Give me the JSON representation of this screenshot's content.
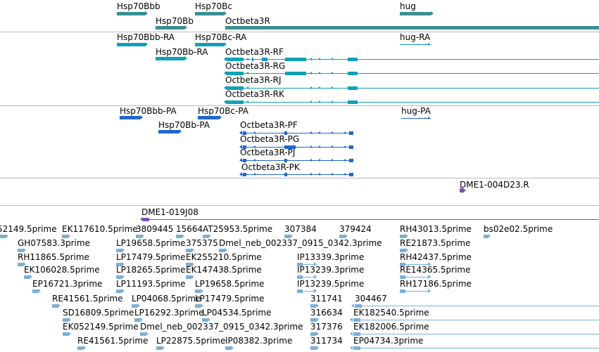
{
  "colors": {
    "gene": "#3a9090",
    "mrna": "#10a0b8",
    "protein": "#2266cc",
    "sts": "#7a55b0",
    "est": "#7ab0d8",
    "divider": "#b8b8c8"
  },
  "tracks": {
    "genes": [
      {
        "label": "Hsp70Bbb",
        "strand": "+"
      },
      {
        "label": "Hsp70Bc",
        "strand": "+"
      },
      {
        "label": "hug",
        "strand": "+"
      },
      {
        "label": "Hsp70Bb",
        "strand": "+"
      },
      {
        "label": "Octbeta3R",
        "strand": "+"
      }
    ],
    "transcripts": [
      {
        "label": "Hsp70Bbb-RA",
        "strand": "+"
      },
      {
        "label": "Hsp70Bc-RA",
        "strand": "+"
      },
      {
        "label": "hug-RA",
        "strand": "+"
      },
      {
        "label": "Hsp70Bb-RA",
        "strand": "+"
      },
      {
        "label": "Octbeta3R-RF",
        "strand": "-"
      },
      {
        "label": "Octbeta3R-RG",
        "strand": "-"
      },
      {
        "label": "Octbeta3R-RJ",
        "strand": "-"
      },
      {
        "label": "Octbeta3R-RK",
        "strand": "-"
      }
    ],
    "proteins": [
      {
        "label": "Hsp70Bbb-PA",
        "strand": "+"
      },
      {
        "label": "Hsp70Bc-PA",
        "strand": "+"
      },
      {
        "label": "hug-PA",
        "strand": "+"
      },
      {
        "label": "Hsp70Bb-PA",
        "strand": "+"
      },
      {
        "label": "Octbeta3R-PF",
        "strand": "-"
      },
      {
        "label": "Octbeta3R-PG",
        "strand": "-"
      },
      {
        "label": "Octbeta3R-PJ",
        "strand": "-"
      },
      {
        "label": "Octbeta3R-PK",
        "strand": "-"
      }
    ],
    "sts": [
      {
        "label": "DME1-004D23.R",
        "strand": "+"
      },
      {
        "label": "DME1-019J08",
        "strand": "-"
      }
    ],
    "ests": [
      {
        "label": "52149.5prime"
      },
      {
        "label": "EK117610.5prime"
      },
      {
        "label": "3809445"
      },
      {
        "label": "15664"
      },
      {
        "label": "AT25953.5prime"
      },
      {
        "label": "307384"
      },
      {
        "label": "379424"
      },
      {
        "label": "RH43013.5prime"
      },
      {
        "label": "bs02e02.5prime"
      },
      {
        "label": "GH07583.3prime"
      },
      {
        "label": "LP19658.5prime"
      },
      {
        "label": "375375"
      },
      {
        "label": "Dmel_neb_002337_0915_0342.3prime"
      },
      {
        "label": "RE21873.5prime"
      },
      {
        "label": "RH11865.5prime"
      },
      {
        "label": "LP17479.5prime"
      },
      {
        "label": "EK255210.5prime"
      },
      {
        "label": "IP13339.3prime"
      },
      {
        "label": "RH42437.5prime"
      },
      {
        "label": "EK106028.5prime"
      },
      {
        "label": "LP18265.5prime"
      },
      {
        "label": "EK147438.5prime"
      },
      {
        "label": "IP13239.3prime"
      },
      {
        "label": "RE14365.5prime"
      },
      {
        "label": "EP16721.3prime"
      },
      {
        "label": "LP11193.5prime"
      },
      {
        "label": "LP19658.5prime"
      },
      {
        "label": "IP13239.5prime"
      },
      {
        "label": "RH17186.5prime"
      },
      {
        "label": "RE41561.5prime"
      },
      {
        "label": "LP04068.5prime"
      },
      {
        "label": "LP17479.5prime"
      },
      {
        "label": "311741"
      },
      {
        "label": "304467"
      },
      {
        "label": "SD16809.5prime"
      },
      {
        "label": "LP16292.3prime"
      },
      {
        "label": "LP04534.5prime"
      },
      {
        "label": "316634"
      },
      {
        "label": "EK182540.5prime"
      },
      {
        "label": "EK052149.5prime"
      },
      {
        "label": "Dmel_neb_002337_0915_0342.3prime"
      },
      {
        "label": "317376"
      },
      {
        "label": "EK182006.5prime"
      },
      {
        "label": "RE41561.5prime"
      },
      {
        "label": "LP22875.5prime"
      },
      {
        "label": "IP08382.3prime"
      },
      {
        "label": "311734"
      },
      {
        "label": "EP04734.3prime"
      }
    ]
  }
}
